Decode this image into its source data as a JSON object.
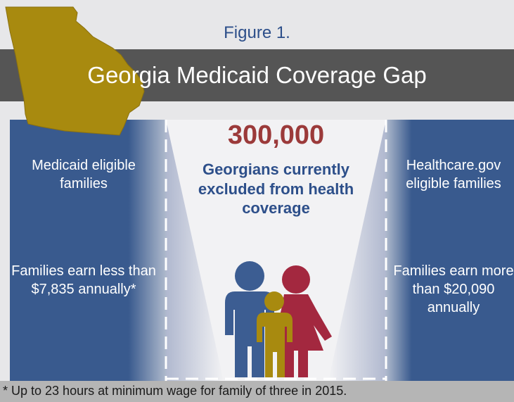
{
  "figure_label": "Figure 1.",
  "title": "Georgia Medicaid Coverage Gap",
  "left_panel": {
    "eligibility": "Medicaid eligible families",
    "income": "Families earn less than $7,835 annually*"
  },
  "center": {
    "count": "300,000",
    "description": "Georgians currently excluded from health coverage"
  },
  "right_panel": {
    "eligibility": "Healthcare.gov eligible families",
    "income": "Families earn more than $20,090 annually"
  },
  "footnote": "* Up to 23 hours at minimum wage for family of three in 2015.",
  "colors": {
    "panel_blue": "#395a8e",
    "title_bar": "#555555",
    "accent_red": "#9b3a3a",
    "state_gold": "#a88a0f",
    "figure_blue": "#2d4f8a",
    "figure_red": "#a3283f"
  },
  "icons": [
    "georgia-state-map-icon",
    "family-icon"
  ]
}
